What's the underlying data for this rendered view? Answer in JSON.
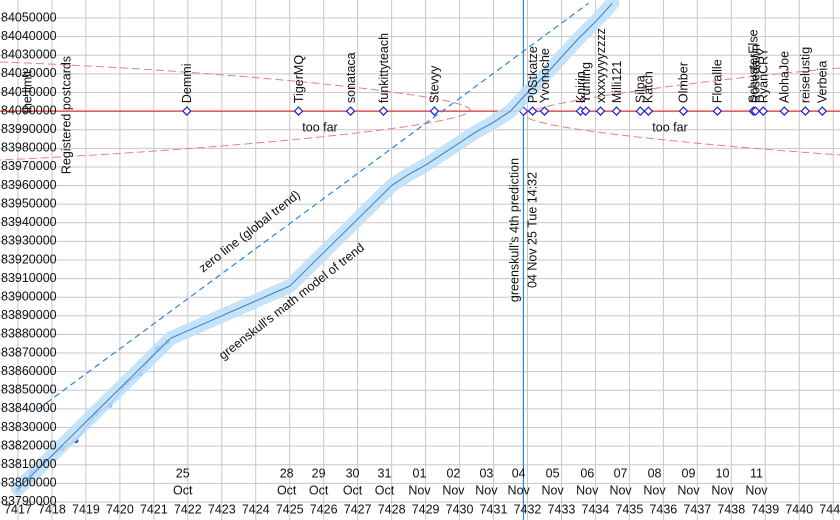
{
  "chart_data": {
    "type": "line",
    "xlim": [
      7416.5,
      7441.2
    ],
    "ylim": [
      83780300,
      84059700
    ],
    "xticks": [
      7417,
      7418,
      7419,
      7420,
      7421,
      7422,
      7423,
      7424,
      7425,
      7426,
      7427,
      7428,
      7429,
      7430,
      7431,
      7432,
      7433,
      7434,
      7435,
      7436,
      7437,
      7438,
      7439,
      7440,
      7441
    ],
    "yticks": [
      83790000,
      83800000,
      83810000,
      83820000,
      83830000,
      83840000,
      83850000,
      83860000,
      83870000,
      83880000,
      83890000,
      83900000,
      83910000,
      83920000,
      83930000,
      83940000,
      83950000,
      83960000,
      83970000,
      83980000,
      83990000,
      84000000,
      84010000,
      84020000,
      84030000,
      84040000,
      84050000
    ],
    "grid": true,
    "series": [
      {
        "style": "markers",
        "color": "#1f2fe0",
        "x": [
          7417.0,
          7417.4,
          7418.3,
          7418.7,
          7419.3,
          7419.7,
          7420.2,
          7420.6,
          7421.1,
          7421.4
        ],
        "values": [
          83796500,
          83806000,
          83819000,
          83823000,
          83837500,
          83842000,
          83854000,
          83859000,
          83872500,
          83876000
        ]
      },
      {
        "style": "band",
        "color": "#3a7fc0",
        "x": [
          7417,
          7417.5,
          7418,
          7418.5,
          7419,
          7419.5,
          7420,
          7420.5,
          7421,
          7421.5,
          7422,
          7422.5,
          7423,
          7423.5,
          7424,
          7424.5,
          7425,
          7425.5,
          7426,
          7426.5,
          7427,
          7427.5,
          7428,
          7428.5,
          7429,
          7429.5,
          7430,
          7430.5,
          7431,
          7431.5,
          7432,
          7432.5,
          7433,
          7433.5,
          7434,
          7434.5
        ],
        "values": [
          83797000,
          83806000,
          83815000,
          83824000,
          83833000,
          83842000,
          83851000,
          83860000,
          83869000,
          83878000,
          83882000,
          83886000,
          83890000,
          83894000,
          83898000,
          83902000,
          83906000,
          83915000,
          83924000,
          83933000,
          83942000,
          83951000,
          83960000,
          83966000,
          83971000,
          83977000,
          83983000,
          83989000,
          83994000,
          84000000,
          84010000,
          84019000,
          84029000,
          84039000,
          84048000,
          84058000
        ]
      },
      {
        "style": "dashed",
        "color": "#2a86e0",
        "x": [
          7417.6,
          7433.8
        ],
        "values": [
          83840000,
          84058000
        ]
      }
    ],
    "limit": {
      "label": "the limit",
      "value": 84000000,
      "color": "#e03030"
    },
    "postcards_label": "Registered postcards",
    "postcards": [
      {
        "name": "Demmi",
        "x": 7421.97
      },
      {
        "name": "TigerMQ",
        "x": 7425.26
      },
      {
        "name": "sonataca",
        "x": 7426.79
      },
      {
        "name": "funkittyteach",
        "x": 7427.76
      },
      {
        "name": "Stevyy",
        "x": 7429.26
      },
      {
        "name": "P0Stkatze",
        "x": 7432.15
      },
      {
        "name": "Yvonnche",
        "x": 7432.5
      },
      {
        "name": "Knirin",
        "x": 7433.56
      },
      {
        "name": "Yunling",
        "x": 7433.71
      },
      {
        "name": "xxxxyyyyzzzz",
        "x": 7434.15
      },
      {
        "name": "Milli121",
        "x": 7434.62
      },
      {
        "name": "Silpa",
        "x": 7435.32
      },
      {
        "name": "Katch",
        "x": 7435.56
      },
      {
        "name": "Olmber",
        "x": 7436.59
      },
      {
        "name": "Florallle",
        "x": 7437.59
      },
      {
        "name": "SchusterElse",
        "x": 7438.65
      },
      {
        "name": "Rosedawn",
        "x": 7438.71
      },
      {
        "name": "RyanCRY",
        "x": 7438.94
      },
      {
        "name": "AlohaJoe",
        "x": 7439.56
      },
      {
        "name": "reiselustig",
        "x": 7440.18
      },
      {
        "name": "Verbeia",
        "x": 7440.68
      }
    ],
    "prediction": {
      "x": 7431.88,
      "label": "greenskull's 4th prediction",
      "date": "04 Nov 25 Tue 14:32"
    },
    "date_labels": [
      {
        "x": 7421.85,
        "day": "25",
        "month": "Oct"
      },
      {
        "x": 7424.91,
        "day": "28",
        "month": "Oct"
      },
      {
        "x": 7425.85,
        "day": "29",
        "month": "Oct"
      },
      {
        "x": 7426.85,
        "day": "30",
        "month": "Oct"
      },
      {
        "x": 7427.79,
        "day": "31",
        "month": "Oct"
      },
      {
        "x": 7428.82,
        "day": "01",
        "month": "Nov"
      },
      {
        "x": 7429.82,
        "day": "02",
        "month": "Nov"
      },
      {
        "x": 7430.79,
        "day": "03",
        "month": "Nov"
      },
      {
        "x": 7431.74,
        "day": "04",
        "month": "Nov"
      },
      {
        "x": 7432.74,
        "day": "05",
        "month": "Nov"
      },
      {
        "x": 7433.76,
        "day": "06",
        "month": "Nov"
      },
      {
        "x": 7434.74,
        "day": "07",
        "month": "Nov"
      },
      {
        "x": 7435.74,
        "day": "08",
        "month": "Nov"
      },
      {
        "x": 7436.74,
        "day": "09",
        "month": "Nov"
      },
      {
        "x": 7437.74,
        "day": "10",
        "month": "Nov"
      },
      {
        "x": 7438.74,
        "day": "11",
        "month": "Nov"
      }
    ],
    "annotations": {
      "too_far": "too far",
      "zero_line": "zero line (global trend)",
      "model": "greenskull's math model of trend"
    }
  }
}
